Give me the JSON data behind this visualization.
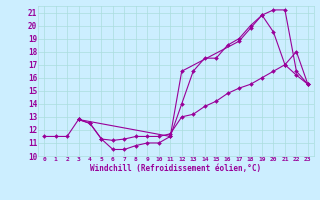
{
  "xlabel": "Windchill (Refroidissement éolien,°C)",
  "bg_color": "#cceeff",
  "line_color": "#990099",
  "grid_color": "#aadddd",
  "xlim": [
    -0.5,
    23.5
  ],
  "ylim": [
    10,
    21.5
  ],
  "xticks": [
    0,
    1,
    2,
    3,
    4,
    5,
    6,
    7,
    8,
    9,
    10,
    11,
    12,
    13,
    14,
    15,
    16,
    17,
    18,
    19,
    20,
    21,
    22,
    23
  ],
  "yticks": [
    10,
    11,
    12,
    13,
    14,
    15,
    16,
    17,
    18,
    19,
    20,
    21
  ],
  "curve1_x": [
    0,
    1,
    2,
    3,
    4,
    5,
    6,
    7,
    8,
    9,
    10,
    11,
    12,
    13,
    14,
    15,
    16,
    17,
    18,
    19,
    20,
    21,
    22,
    23
  ],
  "curve1_y": [
    11.5,
    11.5,
    11.5,
    12.8,
    12.5,
    11.3,
    10.5,
    10.5,
    10.8,
    11.0,
    11.0,
    11.5,
    14.0,
    16.5,
    17.5,
    17.5,
    18.5,
    19.0,
    20.0,
    20.8,
    21.2,
    21.2,
    16.5,
    15.5
  ],
  "curve2_x": [
    3,
    4,
    5,
    6,
    7,
    8,
    9,
    10,
    11,
    12,
    13,
    14,
    15,
    16,
    17,
    18,
    19,
    20,
    21,
    22,
    23
  ],
  "curve2_y": [
    12.8,
    12.5,
    11.3,
    11.2,
    11.3,
    11.5,
    11.5,
    11.5,
    11.7,
    13.0,
    13.2,
    13.8,
    14.2,
    14.8,
    15.2,
    15.5,
    16.0,
    16.5,
    17.0,
    18.0,
    15.5
  ],
  "curve3_x": [
    3,
    11,
    12,
    17,
    18,
    19,
    20,
    21,
    22,
    23
  ],
  "curve3_y": [
    12.8,
    11.5,
    16.5,
    18.8,
    19.8,
    20.8,
    19.5,
    17.0,
    16.2,
    15.5
  ]
}
